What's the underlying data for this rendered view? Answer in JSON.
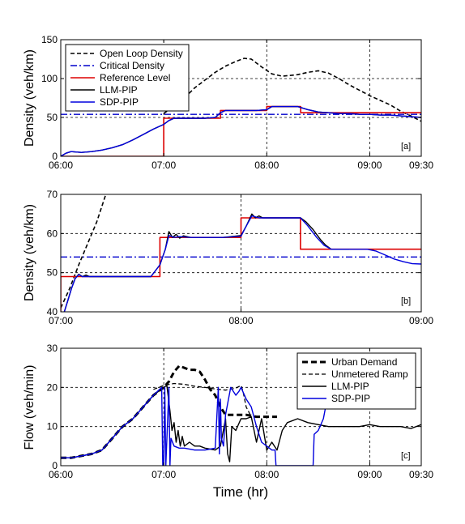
{
  "figure": {
    "xlabel": "Time (hr)"
  },
  "chart_data": [
    {
      "type": "line",
      "panel": "[a]",
      "ylabel": "Density (veh/km)",
      "xlim": [
        6.0,
        9.5
      ],
      "ylim": [
        0,
        150
      ],
      "xticks": [
        6.0,
        7.0,
        8.0,
        9.0,
        9.5
      ],
      "xtick_labels": [
        "06:00",
        "07:00",
        "08:00",
        "09:00",
        "09:30"
      ],
      "yticks": [
        0,
        50,
        100,
        150
      ],
      "ytick_labels": [
        "0",
        "50",
        "100",
        "150"
      ],
      "grid": true,
      "legend_position": "top-left",
      "legend": [
        "Open Loop Density",
        "Critical Density",
        "Reference Level",
        "LLM-PIP",
        "SDP-PIP"
      ],
      "series": [
        {
          "name": "Open Loop Density",
          "color": "#000000",
          "style": "dashed",
          "width": 1.6,
          "x": [
            7.0,
            7.1,
            7.2,
            7.3,
            7.4,
            7.5,
            7.6,
            7.7,
            7.78,
            7.85,
            7.95,
            8.05,
            8.15,
            8.3,
            8.4,
            8.5,
            8.6,
            8.7,
            8.8,
            8.9,
            9.0,
            9.1,
            9.2,
            9.3,
            9.4,
            9.5
          ],
          "y": [
            55,
            65,
            75,
            88,
            98,
            108,
            116,
            122,
            126,
            125,
            115,
            106,
            103,
            105,
            108,
            110,
            107,
            100,
            92,
            85,
            78,
            72,
            66,
            58,
            52,
            45
          ]
        },
        {
          "name": "Critical Density",
          "color": "#0000cc",
          "style": "dashdot",
          "width": 1.4,
          "x": [
            6.0,
            9.5
          ],
          "y": [
            54,
            54
          ]
        },
        {
          "name": "Reference Level",
          "color": "#dd0000",
          "style": "solid",
          "width": 1.6,
          "x": [
            6.0,
            7.0,
            7.0,
            7.55,
            7.55,
            8.0,
            8.0,
            8.33,
            8.33,
            9.5
          ],
          "y": [
            0,
            0,
            49,
            49,
            59,
            59,
            64,
            64,
            56,
            56
          ]
        },
        {
          "name": "LLM-PIP",
          "color": "#000000",
          "style": "solid",
          "width": 1.4,
          "x": [
            6.0,
            6.05,
            6.1,
            6.2,
            6.3,
            6.4,
            6.5,
            6.6,
            6.7,
            6.8,
            6.9,
            7.0,
            7.05,
            7.1,
            7.2,
            7.3,
            7.4,
            7.5,
            7.55,
            7.6,
            7.65,
            7.7,
            7.8,
            7.9,
            8.0,
            8.05,
            8.1,
            8.2,
            8.3,
            8.4,
            8.5,
            8.6,
            8.7,
            8.8,
            8.9,
            9.0,
            9.1,
            9.2,
            9.3,
            9.4,
            9.5
          ],
          "y": [
            0,
            4,
            6,
            5,
            6,
            8,
            11,
            15,
            21,
            28,
            35,
            41,
            46,
            49,
            49,
            49,
            49,
            50,
            56,
            59,
            59,
            59,
            59,
            59,
            60,
            64,
            64,
            64,
            64,
            60,
            57,
            56,
            55,
            55,
            54,
            54,
            53,
            53,
            52,
            51,
            50
          ]
        },
        {
          "name": "SDP-PIP",
          "color": "#0000dd",
          "style": "solid",
          "width": 1.4,
          "x": [
            6.0,
            6.05,
            6.1,
            6.2,
            6.3,
            6.4,
            6.5,
            6.6,
            6.7,
            6.8,
            6.9,
            7.0,
            7.05,
            7.1,
            7.2,
            7.3,
            7.4,
            7.5,
            7.55,
            7.6,
            7.65,
            7.7,
            7.8,
            7.9,
            8.0,
            8.05,
            8.1,
            8.2,
            8.3,
            8.4,
            8.5,
            8.6,
            8.7,
            8.8,
            8.9,
            9.0,
            9.1,
            9.2,
            9.3,
            9.4,
            9.5
          ],
          "y": [
            0,
            4,
            6,
            5,
            6,
            8,
            11,
            15,
            21,
            28,
            35,
            41,
            46,
            49,
            49,
            49,
            49,
            50,
            56,
            59,
            59,
            59,
            59,
            59,
            60,
            64,
            64,
            64,
            64,
            60,
            57,
            56,
            55,
            55,
            54,
            54,
            53,
            53,
            52,
            51,
            50
          ]
        }
      ]
    },
    {
      "type": "line",
      "panel": "[b]",
      "ylabel": "Density (veh/km)",
      "xlim": [
        7.0,
        9.0
      ],
      "ylim": [
        40,
        70
      ],
      "xticks": [
        7.0,
        8.0,
        9.0
      ],
      "xtick_labels": [
        "07:00",
        "08:00",
        "09:00"
      ],
      "yticks": [
        40,
        50,
        60,
        70
      ],
      "ytick_labels": [
        "40",
        "50",
        "60",
        "70"
      ],
      "grid": true,
      "series": [
        {
          "name": "Open Loop Density",
          "color": "#000000",
          "style": "dashed",
          "width": 1.6,
          "x": [
            7.0,
            7.05,
            7.1,
            7.2,
            7.25
          ],
          "y": [
            41,
            46,
            52,
            63,
            70
          ]
        },
        {
          "name": "Critical Density",
          "color": "#0000cc",
          "style": "dashdot",
          "width": 1.4,
          "x": [
            7.0,
            9.0
          ],
          "y": [
            54,
            54
          ]
        },
        {
          "name": "Reference Level",
          "color": "#dd0000",
          "style": "solid",
          "width": 1.6,
          "x": [
            7.0,
            7.0,
            7.55,
            7.55,
            8.0,
            8.0,
            8.33,
            8.33,
            9.0
          ],
          "y": [
            40,
            49,
            49,
            59,
            59,
            64,
            64,
            56,
            56
          ]
        },
        {
          "name": "LLM-PIP",
          "color": "#000000",
          "style": "solid",
          "width": 1.4,
          "x": [
            7.02,
            7.04,
            7.06,
            7.08,
            7.1,
            7.12,
            7.14,
            7.16,
            7.2,
            7.3,
            7.4,
            7.5,
            7.55,
            7.58,
            7.6,
            7.62,
            7.64,
            7.66,
            7.68,
            7.72,
            7.8,
            7.9,
            8.0,
            8.03,
            8.06,
            8.08,
            8.1,
            8.12,
            8.16,
            8.2,
            8.3,
            8.33,
            8.36,
            8.4,
            8.44,
            8.47,
            8.5,
            8.6
          ],
          "y": [
            40,
            43,
            46,
            48.5,
            49.6,
            49,
            49.4,
            49,
            49,
            49,
            49,
            49,
            52,
            56,
            60.5,
            59,
            59.8,
            58.8,
            59.4,
            59,
            59,
            59,
            59.5,
            62,
            65,
            64,
            64.5,
            64,
            64,
            64,
            64,
            64,
            63,
            61,
            58.5,
            57,
            56,
            56
          ]
        },
        {
          "name": "SDP-PIP",
          "color": "#0000dd",
          "style": "solid",
          "width": 1.4,
          "x": [
            7.02,
            7.04,
            7.06,
            7.08,
            7.1,
            7.12,
            7.16,
            7.2,
            7.3,
            7.4,
            7.5,
            7.55,
            7.58,
            7.6,
            7.63,
            7.66,
            7.72,
            7.8,
            7.9,
            8.0,
            8.03,
            8.06,
            8.1,
            8.2,
            8.3,
            8.33,
            8.37,
            8.42,
            8.46,
            8.5,
            8.6,
            8.7,
            8.75,
            8.8,
            8.85,
            8.9,
            8.95,
            9.0
          ],
          "y": [
            40,
            43,
            46,
            48.5,
            49.5,
            49,
            49,
            49,
            49,
            49,
            49,
            52,
            56,
            59.5,
            59,
            59.2,
            59,
            59,
            59,
            59.3,
            62,
            64.5,
            64,
            64,
            64,
            64,
            62,
            59,
            57,
            56,
            56,
            56,
            55.5,
            54.5,
            53.5,
            52.8,
            52.3,
            52.2
          ]
        }
      ]
    },
    {
      "type": "line",
      "panel": "[c]",
      "ylabel": "Flow (veh/min)",
      "xlim": [
        6.0,
        9.5
      ],
      "ylim": [
        0,
        30
      ],
      "xticks": [
        6.0,
        7.0,
        8.0,
        9.0,
        9.5
      ],
      "xtick_labels": [
        "06:00",
        "07:00",
        "08:00",
        "09:00",
        "09:30"
      ],
      "yticks": [
        0,
        10,
        20,
        30
      ],
      "ytick_labels": [
        "0",
        "10",
        "20",
        "30"
      ],
      "grid": true,
      "legend_position": "top-right",
      "legend": [
        "Urban Demand",
        "Unmetered Ramp",
        "LLM-PIP",
        "SDP-PIP"
      ],
      "series": [
        {
          "name": "Urban Demand",
          "color": "#000000",
          "style": "dashed-bold",
          "width": 3,
          "x": [
            6.0,
            6.1,
            6.2,
            6.3,
            6.4,
            6.5,
            6.6,
            6.7,
            6.8,
            6.9,
            7.0,
            7.05,
            7.1,
            7.15,
            7.2,
            7.25,
            7.3,
            7.35,
            7.4,
            7.45,
            7.5,
            7.55,
            7.6,
            7.65,
            7.7,
            7.8,
            7.9,
            8.0,
            8.1
          ],
          "y": [
            2,
            2,
            2.5,
            3,
            4,
            7,
            10,
            12,
            15,
            18,
            20,
            21.5,
            24,
            25.5,
            25,
            24.5,
            24.5,
            24,
            22,
            19.5,
            18,
            15,
            13,
            13,
            13,
            13,
            12.5,
            12.5,
            12.5
          ]
        },
        {
          "name": "Unmetered Ramp",
          "color": "#000000",
          "style": "dashed",
          "width": 1.3,
          "x": [
            6.9,
            7.0,
            7.1,
            7.2,
            7.3,
            7.4,
            7.5,
            7.6,
            7.7,
            7.75,
            7.77,
            7.8,
            7.85
          ],
          "y": [
            19.5,
            20.5,
            21,
            20.8,
            20.3,
            20,
            19.6,
            19.3,
            19.8,
            20.5,
            19,
            15,
            12.5
          ]
        },
        {
          "name": "LLM-PIP",
          "color": "#000000",
          "style": "solid",
          "width": 1.4,
          "x": [
            6.0,
            6.1,
            6.2,
            6.3,
            6.4,
            6.5,
            6.6,
            6.7,
            6.8,
            6.9,
            7.0,
            7.03,
            7.06,
            7.08,
            7.1,
            7.12,
            7.14,
            7.16,
            7.18,
            7.2,
            7.25,
            7.3,
            7.35,
            7.4,
            7.5,
            7.55,
            7.6,
            7.62,
            7.64,
            7.66,
            7.7,
            7.75,
            7.8,
            7.85,
            7.9,
            7.95,
            8.0,
            8.05,
            8.1,
            8.15,
            8.2,
            8.3,
            8.4,
            8.5,
            8.6,
            8.7,
            8.8,
            8.9,
            9.0,
            9.1,
            9.2,
            9.3,
            9.4,
            9.5
          ],
          "y": [
            2,
            2,
            2.5,
            3,
            4,
            7,
            10,
            12,
            15,
            18,
            20,
            20.5,
            14,
            9,
            11,
            6,
            9,
            5,
            7.5,
            5,
            6,
            5,
            5,
            4.5,
            4,
            5,
            12,
            3,
            1,
            10,
            9,
            12,
            12,
            12.5,
            6,
            12,
            4,
            6,
            4,
            9,
            11,
            12,
            11,
            10.5,
            10,
            10,
            10,
            10,
            10.5,
            10,
            10,
            10,
            9.5,
            10.5
          ]
        },
        {
          "name": "SDP-PIP",
          "color": "#0000dd",
          "style": "solid",
          "width": 1.4,
          "x": [
            6.0,
            6.1,
            6.2,
            6.3,
            6.4,
            6.5,
            6.6,
            6.7,
            6.8,
            6.9,
            6.98,
            6.99,
            7.0,
            7.01,
            7.02,
            7.05,
            7.06,
            7.07,
            7.1,
            7.15,
            7.2,
            7.3,
            7.4,
            7.5,
            7.53,
            7.54,
            7.55,
            7.56,
            7.58,
            7.6,
            7.65,
            7.7,
            7.73,
            7.75,
            7.8,
            7.85,
            7.9,
            7.95,
            8.0,
            8.05,
            8.08,
            8.09,
            8.1,
            8.3,
            8.45,
            8.46,
            8.5,
            8.55,
            8.6
          ],
          "y": [
            2,
            2,
            2.5,
            3,
            4,
            7,
            10,
            12,
            15,
            18,
            20,
            0,
            0,
            20,
            0,
            20,
            0,
            7,
            5,
            4.5,
            4.5,
            4,
            4,
            4.5,
            20,
            3,
            17,
            7,
            5,
            13,
            20,
            18,
            19,
            20,
            17,
            15,
            10,
            6,
            5,
            4,
            4,
            0,
            0,
            0,
            0,
            8,
            9,
            12,
            19
          ]
        }
      ]
    }
  ]
}
